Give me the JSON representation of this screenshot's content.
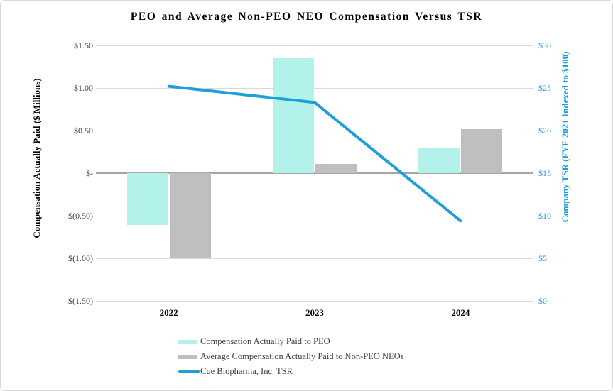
{
  "title": "PEO and Average Non-PEO NEO Compensation Versus TSR",
  "chart_data": {
    "type": "bar",
    "subtype": "combo-bar-line",
    "categories": [
      "2022",
      "2023",
      "2024"
    ],
    "series": [
      {
        "name": "Compensation Actually Paid to PEO",
        "type": "bar",
        "axis": "left",
        "color": "#b3f2ea",
        "values": [
          -0.61,
          1.35,
          0.29
        ]
      },
      {
        "name": "Average Compensation Actually Paid to Non-PEO NEOs",
        "type": "bar",
        "axis": "left",
        "color": "#bfbfbf",
        "values": [
          -1.0,
          0.11,
          0.52
        ]
      },
      {
        "name": "Cue Biopharma, Inc. TSR",
        "type": "line",
        "axis": "right",
        "color": "#1e9fd7",
        "values": [
          25.2,
          23.3,
          9.4
        ]
      }
    ],
    "left_axis": {
      "title": "Compensation Actually Paid ($ Millions)",
      "ticks": [
        "$1.50",
        "$1.00",
        "$0.50",
        "$-",
        "$(0.50)",
        "$(1.00)",
        "$(1.50)"
      ],
      "tick_values": [
        1.5,
        1.0,
        0.5,
        0,
        -0.5,
        -1.0,
        -1.5
      ],
      "range": [
        -1.5,
        1.5
      ]
    },
    "right_axis": {
      "title": "Company TSR (FYE 2021 Indexed to $100)",
      "ticks": [
        "$30",
        "$25",
        "$20",
        "$15",
        "$10",
        "$5",
        "$0"
      ],
      "tick_values": [
        30,
        25,
        20,
        15,
        10,
        5,
        0
      ],
      "range": [
        0,
        30
      ],
      "color": "#1e9fd7"
    },
    "grid": true,
    "legend_position": "bottom-left",
    "colors": {
      "gridline": "#d9d9d9",
      "zero_line": "#a6a6a6",
      "tick_text": "#3f3f3f",
      "legend_text": "#404040"
    }
  }
}
